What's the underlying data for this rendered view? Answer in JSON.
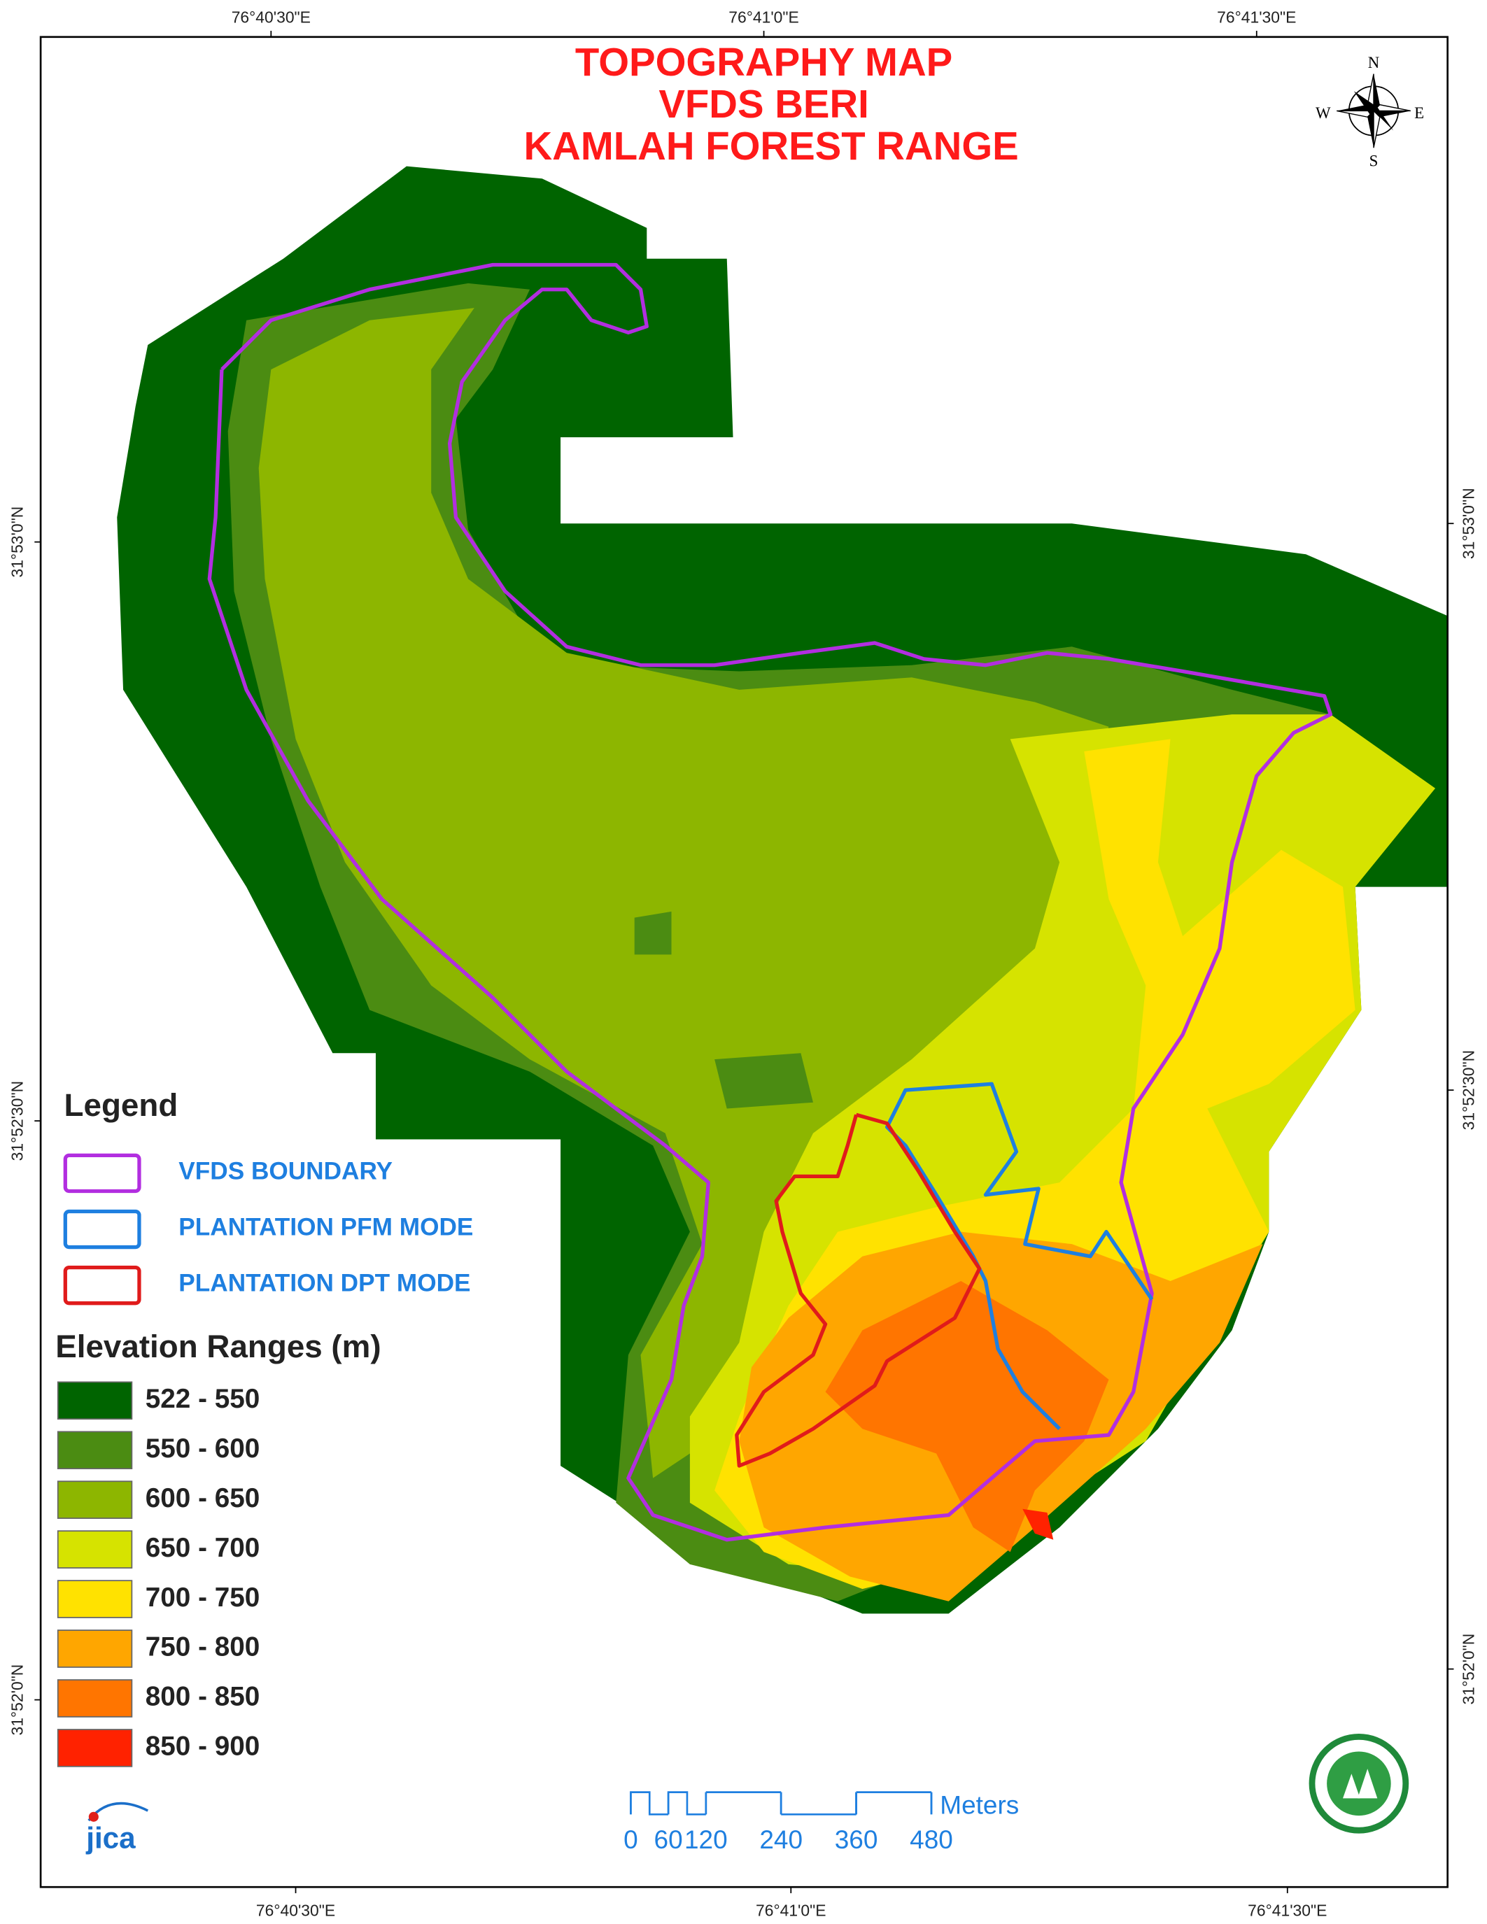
{
  "title": [
    "TOPOGRAPHY MAP",
    "VFDS BERI",
    "KAMLAH FOREST RANGE"
  ],
  "grid_labels": {
    "top": [
      "76°40'30\"E",
      "76°41'0\"E",
      "76°41'30\"E"
    ],
    "bottom": [
      "76°40'30\"E",
      "76°41'0\"E",
      "76°41'30\"E"
    ],
    "left": [
      "31°53'0\"N",
      "31°52'30\"N",
      "31°52'0\"N"
    ],
    "right": [
      "31°53'0\"N",
      "31°52'30\"N",
      "31°52'0\"N"
    ]
  },
  "compass": {
    "n": "N",
    "e": "E",
    "s": "S",
    "w": "W"
  },
  "legend": {
    "title": "Legend",
    "items": [
      {
        "label": "VFDS BOUNDARY",
        "color": "#b22ee0"
      },
      {
        "label": "PLANTATION PFM MODE",
        "color": "#1e7fe0"
      },
      {
        "label": "PLANTATION DPT MODE",
        "color": "#e01b1b"
      }
    ]
  },
  "elevation": {
    "title": "Elevation Ranges (m)",
    "classes": [
      {
        "label": "522 - 550",
        "color": "#006400"
      },
      {
        "label": "550 - 600",
        "color": "#4b8c12"
      },
      {
        "label": "600 - 650",
        "color": "#8db600"
      },
      {
        "label": "650 - 700",
        "color": "#d6e300"
      },
      {
        "label": "700 - 750",
        "color": "#ffe200"
      },
      {
        "label": "750 - 800",
        "color": "#ffa600"
      },
      {
        "label": "800 - 850",
        "color": "#ff7500"
      },
      {
        "label": "850 - 900",
        "color": "#ff2200"
      }
    ]
  },
  "scale_bar": {
    "ticks": [
      0,
      60,
      120,
      240,
      360,
      480
    ],
    "unit": "Meters"
  },
  "logo": "jica"
}
